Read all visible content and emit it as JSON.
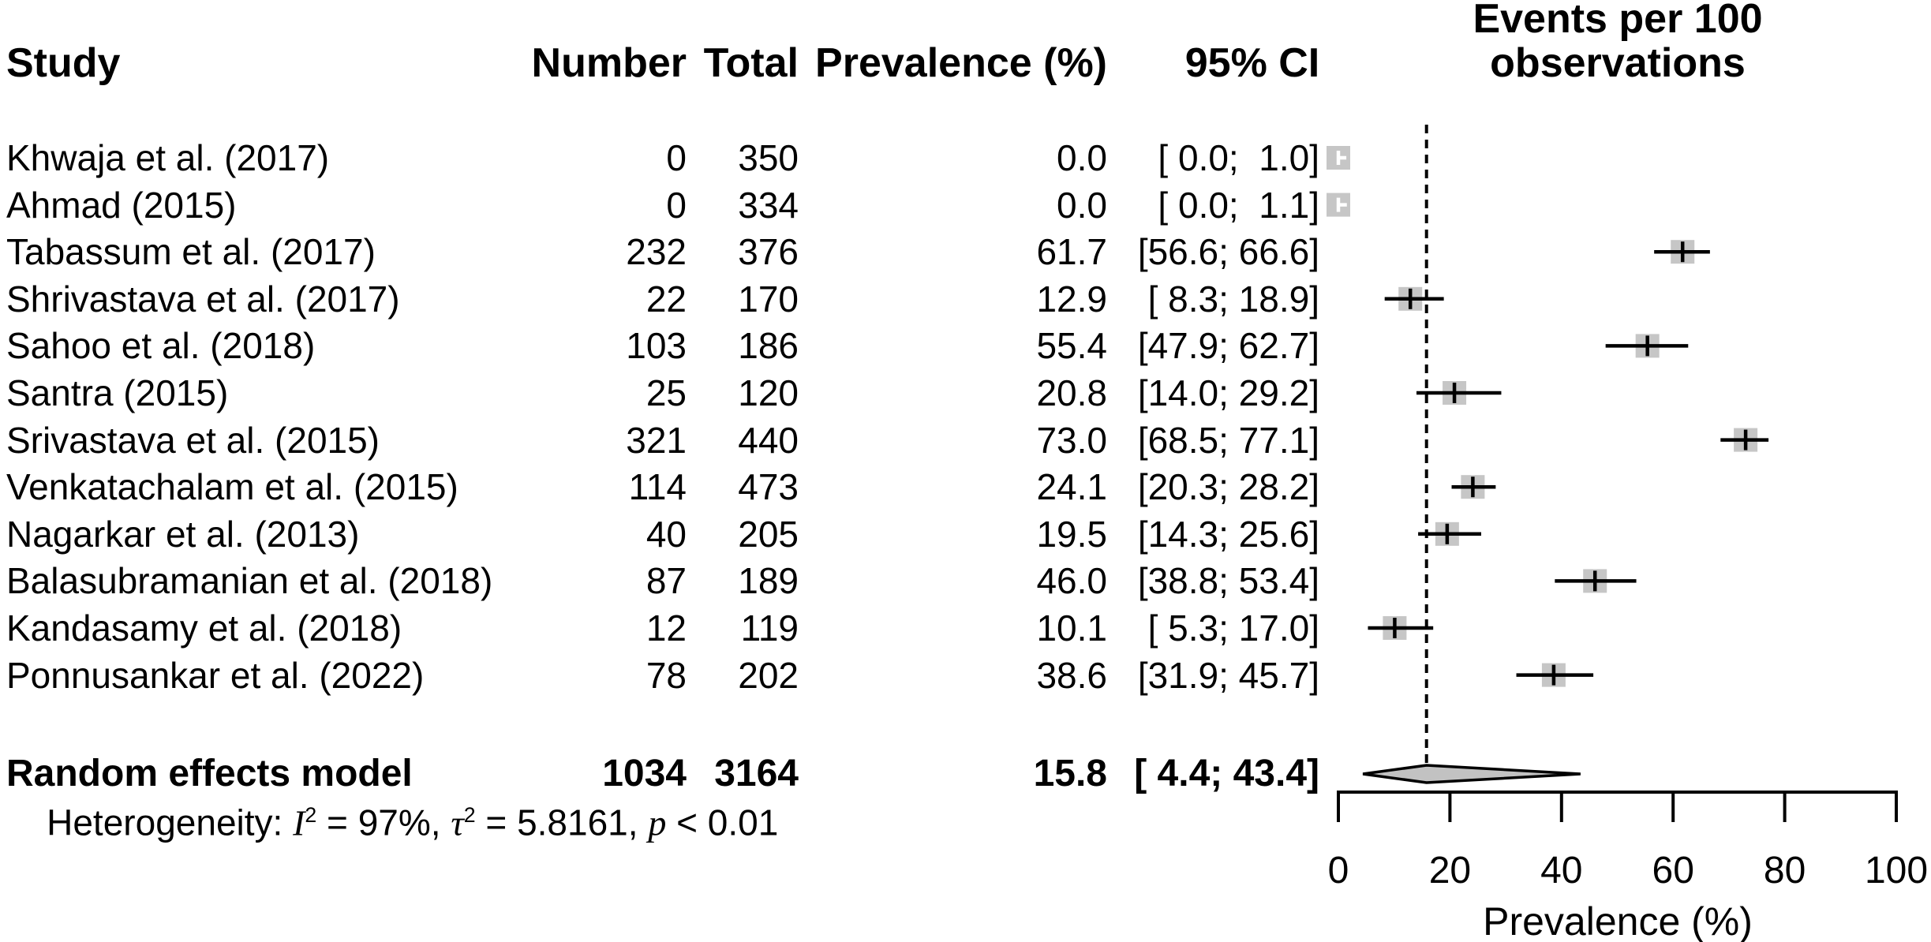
{
  "header": {
    "study": "Study",
    "number": "Number",
    "total": "Total",
    "prevalence": "Prevalence (%)",
    "ci": "95% CI",
    "events_line1": "Events per 100",
    "events_line2": "observations"
  },
  "colors": {
    "background": "#ffffff",
    "text": "#000000",
    "square_fill": "#c6c6c6",
    "diamond_fill": "#c2c2c2",
    "line": "#000000",
    "inside_marker": "#ffffff"
  },
  "chart_data": {
    "type": "scatter",
    "variant": "forest-plot",
    "title": "",
    "xlabel": "Prevalence (%)",
    "ylabel": "",
    "x_axis": {
      "min": 0,
      "max": 100,
      "ticks": [
        0,
        20,
        40,
        60,
        80,
        100
      ]
    },
    "reference_line_x": 15.8,
    "grid": false,
    "legend": false,
    "studies": [
      {
        "name": "Khwaja et al. (2017)",
        "number": "0",
        "total": "350",
        "prevalence": 0.0,
        "prevalence_label": "0.0",
        "ci_lower": 0.0,
        "ci_upper": 1.0,
        "ci_label": "[ 0.0;  1.0]"
      },
      {
        "name": "Ahmad (2015)",
        "number": "0",
        "total": "334",
        "prevalence": 0.0,
        "prevalence_label": "0.0",
        "ci_lower": 0.0,
        "ci_upper": 1.1,
        "ci_label": "[ 0.0;  1.1]"
      },
      {
        "name": "Tabassum et al. (2017)",
        "number": "232",
        "total": "376",
        "prevalence": 61.7,
        "prevalence_label": "61.7",
        "ci_lower": 56.6,
        "ci_upper": 66.6,
        "ci_label": "[56.6; 66.6]"
      },
      {
        "name": "Shrivastava et al. (2017)",
        "number": "22",
        "total": "170",
        "prevalence": 12.9,
        "prevalence_label": "12.9",
        "ci_lower": 8.3,
        "ci_upper": 18.9,
        "ci_label": "[ 8.3; 18.9]"
      },
      {
        "name": "Sahoo et al. (2018)",
        "number": "103",
        "total": "186",
        "prevalence": 55.4,
        "prevalence_label": "55.4",
        "ci_lower": 47.9,
        "ci_upper": 62.7,
        "ci_label": "[47.9; 62.7]"
      },
      {
        "name": "Santra (2015)",
        "number": "25",
        "total": "120",
        "prevalence": 20.8,
        "prevalence_label": "20.8",
        "ci_lower": 14.0,
        "ci_upper": 29.2,
        "ci_label": "[14.0; 29.2]"
      },
      {
        "name": "Srivastava et al. (2015)",
        "number": "321",
        "total": "440",
        "prevalence": 73.0,
        "prevalence_label": "73.0",
        "ci_lower": 68.5,
        "ci_upper": 77.1,
        "ci_label": "[68.5; 77.1]"
      },
      {
        "name": "Venkatachalam et al. (2015)",
        "number": "114",
        "total": "473",
        "prevalence": 24.1,
        "prevalence_label": "24.1",
        "ci_lower": 20.3,
        "ci_upper": 28.2,
        "ci_label": "[20.3; 28.2]"
      },
      {
        "name": "Nagarkar et al. (2013)",
        "number": "40",
        "total": "205",
        "prevalence": 19.5,
        "prevalence_label": "19.5",
        "ci_lower": 14.3,
        "ci_upper": 25.6,
        "ci_label": "[14.3; 25.6]"
      },
      {
        "name": "Balasubramanian et al. (2018)",
        "number": "87",
        "total": "189",
        "prevalence": 46.0,
        "prevalence_label": "46.0",
        "ci_lower": 38.8,
        "ci_upper": 53.4,
        "ci_label": "[38.8; 53.4]"
      },
      {
        "name": "Kandasamy et al. (2018)",
        "number": "12",
        "total": "119",
        "prevalence": 10.1,
        "prevalence_label": "10.1",
        "ci_lower": 5.3,
        "ci_upper": 17.0,
        "ci_label": "[ 5.3; 17.0]"
      },
      {
        "name": "Ponnusankar et al. (2022)",
        "number": "78",
        "total": "202",
        "prevalence": 38.6,
        "prevalence_label": "38.6",
        "ci_lower": 31.9,
        "ci_upper": 45.7,
        "ci_label": "[31.9; 45.7]"
      }
    ],
    "pooled": {
      "name": "Random effects model",
      "number": "1034",
      "total": "3164",
      "prevalence": 15.8,
      "prevalence_label": "15.8",
      "ci_lower": 4.4,
      "ci_upper": 43.4,
      "ci_label": "[ 4.4; 43.4]"
    },
    "heterogeneity": {
      "prefix": "Heterogeneity: ",
      "i_symbol": "I",
      "i_sup": "2",
      "after_i": " = 97%, ",
      "tau_symbol": "τ",
      "tau_sup": "2",
      "after_tau": " = 5.8161, ",
      "p_symbol": "p",
      "after_p": " < 0.01"
    }
  }
}
